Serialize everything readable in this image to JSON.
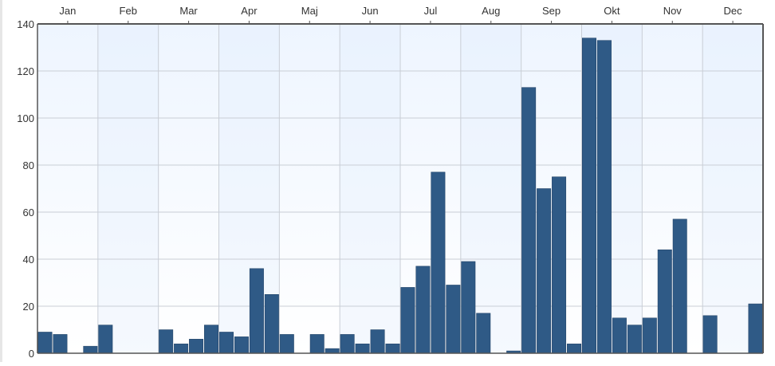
{
  "colors": {
    "bar_fill": "#2f5a86",
    "bar_stroke": "#1f3f62",
    "grid": "#c9ced6",
    "axis": "#555555",
    "plot_bg_top": "#eef5ff",
    "plot_bg_bottom": "#ffffff"
  },
  "chart_data": {
    "type": "bar",
    "title": "",
    "xlabel": "",
    "ylabel": "",
    "ylim": [
      0,
      140
    ],
    "y_ticks": [
      0,
      20,
      40,
      60,
      80,
      100,
      120,
      140
    ],
    "y_tick_labels": [
      "0",
      "20",
      "40",
      "60",
      "80",
      "100",
      "120",
      "140"
    ],
    "x_axis_position": "top",
    "grid": true,
    "legend": "none",
    "months": [
      "Jan",
      "Feb",
      "Mar",
      "Apr",
      "Maj",
      "Jun",
      "Jul",
      "Aug",
      "Sep",
      "Okt",
      "Nov",
      "Dec"
    ],
    "bar_count": 48,
    "values": [
      9,
      8,
      0,
      3,
      12,
      0,
      0,
      0,
      10,
      4,
      6,
      12,
      9,
      7,
      36,
      25,
      8,
      0,
      8,
      2,
      8,
      4,
      10,
      4,
      28,
      37,
      77,
      29,
      39,
      17,
      0,
      1,
      113,
      70,
      75,
      4,
      134,
      133,
      15,
      12,
      15,
      44,
      57,
      0,
      16,
      0,
      0,
      21
    ]
  }
}
